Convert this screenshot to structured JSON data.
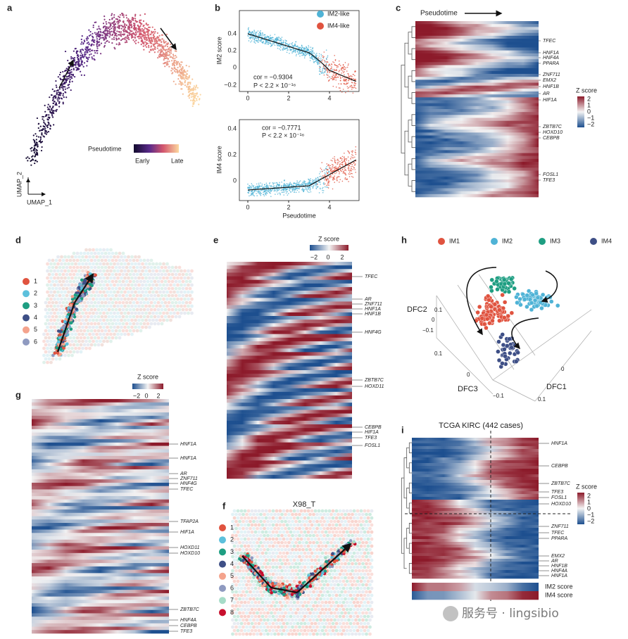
{
  "panels": {
    "a": {
      "label": "a",
      "legend_title": "Pseudotime",
      "legend_low": "Early",
      "legend_high": "Late",
      "x_axis": "UMAP_1",
      "y_axis": "UMAP_2"
    },
    "b": {
      "label": "b",
      "legend": [
        "IM2-like",
        "IM4-like"
      ],
      "top": {
        "y_axis": "IM2 score",
        "yticks": [
          "0.4",
          "0.2",
          "0",
          "−0.2"
        ],
        "cor": "cor = −0.9304",
        "p": "P < 2.2 × 10⁻¹⁶"
      },
      "bottom": {
        "y_axis": "IM4 score",
        "yticks": [
          "0.4",
          "0.2",
          "0"
        ],
        "cor": "cor = −0.7771",
        "p": "P < 2.2 × 10⁻¹⁶"
      },
      "xticks": [
        "0",
        "2",
        "4"
      ],
      "x_axis": "Pseudotime"
    },
    "c": {
      "label": "c",
      "title": "Pseudotime",
      "genes": [
        "TFEC",
        "HNF1A",
        "HNF4A",
        "PPARA",
        "ZNF711",
        "EMX2",
        "HNF1B",
        "AR",
        "HIF1A",
        "ZBTB7C",
        "HOXD10",
        "CEBPB",
        "FOSL1",
        "TFE3"
      ],
      "colorbar_title": "Z score",
      "colorbar_ticks": [
        "2",
        "1",
        "0",
        "−1",
        "−2"
      ]
    },
    "d": {
      "label": "d",
      "legend": [
        "1",
        "2",
        "3",
        "4",
        "5",
        "6"
      ]
    },
    "e": {
      "label": "e",
      "colorbar_title": "Z score",
      "colorbar_ticks": [
        "−2",
        "0",
        "2"
      ],
      "genes": [
        "TFEC",
        "AR",
        "ZNF711",
        "HNF1A",
        "HNF1B",
        "HNF4G",
        "ZBTB7C",
        "HOXD11",
        "CEBPB",
        "HIF1A",
        "TFE3",
        "FOSL1"
      ]
    },
    "f": {
      "label": "f",
      "title": "X98_T",
      "legend": [
        "1",
        "2",
        "3",
        "4",
        "5",
        "6",
        "7",
        "8"
      ]
    },
    "g": {
      "label": "g",
      "colorbar_title": "Z score",
      "colorbar_ticks": [
        "−2",
        "0",
        "2"
      ],
      "genes": [
        "HNF1A",
        "HNF1A",
        "AR",
        "ZNF711",
        "HNF4G",
        "TFEC",
        "TFAP2A",
        "HIF1A",
        "HOXD11",
        "HOXD10",
        "ZBTB7C",
        "HNF4A",
        "CEBPB",
        "TFE3"
      ]
    },
    "h": {
      "label": "h",
      "legend": [
        "IM1",
        "IM2",
        "IM3",
        "IM4"
      ],
      "axes": [
        "DFC2",
        "DFC3",
        "DFC1"
      ],
      "ticks": [
        "0.1",
        "0",
        "−0.1",
        "0.1",
        "0",
        "−0.1",
        "0.1",
        "0"
      ]
    },
    "i": {
      "label": "i",
      "title": "TCGA KIRC (442 cases)",
      "genes": [
        "HNF1A",
        "CEBPB",
        "ZBTB7C",
        "TFE3",
        "FOSL1",
        "HOXD10",
        "ZNF711",
        "TFEC",
        "PPARA",
        "EMX2",
        "AR",
        "HNF1B",
        "HNF4A",
        "HNF1A"
      ],
      "colorbar_title": "Z score",
      "colorbar_ticks": [
        "2",
        "1",
        "0",
        "−1",
        "−2"
      ],
      "strip_labels": [
        "IM2 score",
        "IM4 score"
      ]
    },
    "watermark": "服务号 · lingsibio"
  }
}
